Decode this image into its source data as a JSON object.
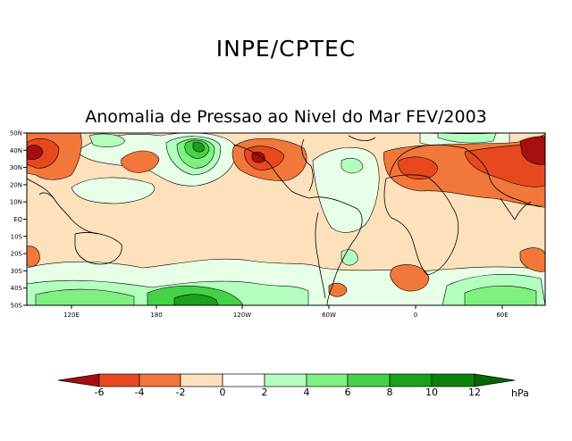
{
  "header": {
    "organization": "INPE/CPTEC"
  },
  "map": {
    "title": "Anomalia de Pressao ao Nivel do Mar FEV/2003",
    "lat_labels": [
      "50N",
      "40N",
      "30N",
      "20N",
      "10N",
      "EQ",
      "10S",
      "20S",
      "30S",
      "40S",
      "50S"
    ],
    "lon_labels": [
      "120E",
      "180",
      "120W",
      "60W",
      "0",
      "60E"
    ]
  },
  "colorbar": {
    "ticks": [
      "-6",
      "-4",
      "-2",
      "0",
      "2",
      "4",
      "6",
      "8",
      "10",
      "12"
    ],
    "unit": "hPa",
    "colors": [
      "#a50f0f",
      "#e8481e",
      "#f2773a",
      "#f9ad6b",
      "#fde1bd",
      "#e6ffe6",
      "#b3ffbf",
      "#80f080",
      "#46d246",
      "#1aa01a",
      "#0a820a",
      "#066606"
    ]
  }
}
